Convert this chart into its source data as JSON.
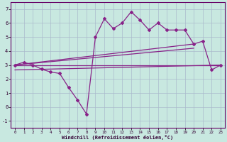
{
  "xlabel": "Windchill (Refroidissement éolien,°C)",
  "xlim": [
    -0.5,
    23.5
  ],
  "ylim": [
    -1.5,
    7.5
  ],
  "yticks": [
    -1,
    0,
    1,
    2,
    3,
    4,
    5,
    6,
    7
  ],
  "xticks": [
    0,
    1,
    2,
    3,
    4,
    5,
    6,
    7,
    8,
    9,
    10,
    11,
    12,
    13,
    14,
    15,
    16,
    17,
    18,
    19,
    20,
    21,
    22,
    23
  ],
  "bg_color": "#c8e8e0",
  "grid_color": "#aabbcc",
  "line_color": "#882288",
  "wiggly_x": [
    0,
    1,
    2,
    3,
    4,
    5,
    6,
    7,
    8,
    9,
    10,
    11,
    12,
    13,
    14,
    15,
    16,
    17,
    18,
    19,
    20,
    21,
    22,
    23
  ],
  "wiggly_y": [
    3.0,
    3.2,
    3.0,
    2.7,
    2.5,
    2.4,
    1.4,
    0.5,
    -0.5,
    5.0,
    6.3,
    5.6,
    6.0,
    6.8,
    6.2,
    5.5,
    6.0,
    5.5,
    5.5,
    5.5,
    4.5,
    4.7,
    2.65,
    3.0
  ],
  "trend1_x": [
    0,
    23
  ],
  "trend1_y": [
    3.0,
    3.0
  ],
  "trend2_x": [
    0,
    20
  ],
  "trend2_y": [
    3.0,
    4.5
  ],
  "trend3_x": [
    0,
    20
  ],
  "trend3_y": [
    3.0,
    4.2
  ],
  "trend4_x": [
    0,
    23
  ],
  "trend4_y": [
    2.65,
    3.0
  ]
}
